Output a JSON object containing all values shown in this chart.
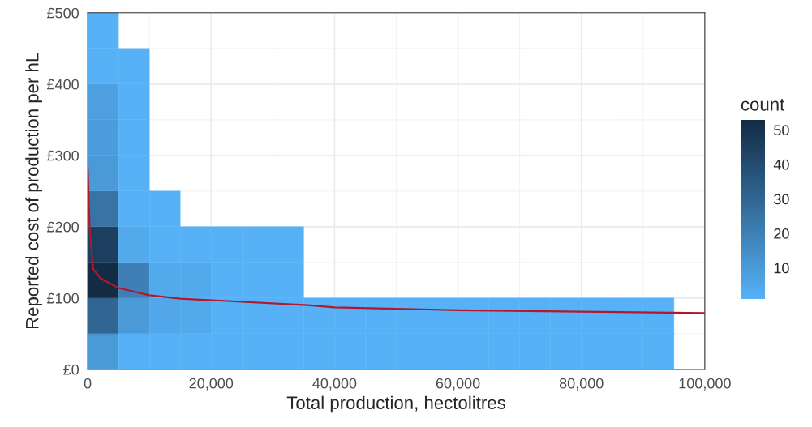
{
  "chart_data": {
    "type": "heatmap",
    "xlabel": "Total production, hectolitres",
    "ylabel": "Reported cost of production per hL",
    "legend_title": "count",
    "xlim": [
      0,
      100000
    ],
    "ylim": [
      0,
      500
    ],
    "xticks": [
      {
        "value": 0,
        "label": "0"
      },
      {
        "value": 20000,
        "label": "20,000"
      },
      {
        "value": 40000,
        "label": "40,000"
      },
      {
        "value": 60000,
        "label": "60,000"
      },
      {
        "value": 80000,
        "label": "80,000"
      },
      {
        "value": 100000,
        "label": "100,000"
      }
    ],
    "yticks": [
      {
        "value": 0,
        "label": "£0"
      },
      {
        "value": 100,
        "label": "£100"
      },
      {
        "value": 200,
        "label": "£200"
      },
      {
        "value": 300,
        "label": "£300"
      },
      {
        "value": 400,
        "label": "£400"
      },
      {
        "value": 500,
        "label": "£500"
      }
    ],
    "grid": true,
    "colors": [
      "#56b1f7",
      "#132b43"
    ],
    "clim": [
      1,
      53
    ],
    "cticks": [
      10,
      20,
      30,
      40,
      50
    ],
    "cells": [
      [
        1,
        null,
        null,
        null,
        null,
        null,
        null,
        null,
        null,
        null,
        null,
        null,
        null,
        null,
        null,
        null,
        null,
        null,
        null,
        null
      ],
      [
        1,
        1,
        null,
        null,
        null,
        null,
        null,
        null,
        null,
        null,
        null,
        null,
        null,
        null,
        null,
        null,
        null,
        null,
        null,
        null
      ],
      [
        8,
        1,
        null,
        null,
        null,
        null,
        null,
        null,
        null,
        null,
        null,
        null,
        null,
        null,
        null,
        null,
        null,
        null,
        null,
        null
      ],
      [
        9,
        1,
        null,
        null,
        null,
        null,
        null,
        null,
        null,
        null,
        null,
        null,
        null,
        null,
        null,
        null,
        null,
        null,
        null,
        null
      ],
      [
        10,
        1,
        null,
        null,
        null,
        null,
        null,
        null,
        null,
        null,
        null,
        null,
        null,
        null,
        null,
        null,
        null,
        null,
        null,
        null
      ],
      [
        25,
        1,
        1,
        null,
        null,
        null,
        null,
        null,
        null,
        null,
        null,
        null,
        null,
        null,
        null,
        null,
        null,
        null,
        null,
        null
      ],
      [
        45,
        4,
        1,
        1,
        1,
        1,
        1,
        null,
        null,
        null,
        null,
        null,
        null,
        null,
        null,
        null,
        null,
        null,
        null,
        null
      ],
      [
        53,
        20,
        4,
        4,
        1,
        1,
        1,
        null,
        null,
        null,
        null,
        null,
        null,
        null,
        null,
        null,
        null,
        null,
        null,
        null
      ],
      [
        30,
        10,
        5,
        4,
        1,
        1,
        1,
        1,
        1,
        1,
        1,
        1,
        1,
        1,
        1,
        1,
        1,
        1,
        1,
        null
      ],
      [
        10,
        1,
        1,
        1,
        1,
        1,
        1,
        1,
        1,
        1,
        1,
        1,
        1,
        1,
        1,
        1,
        1,
        1,
        1,
        null
      ]
    ],
    "series": [
      {
        "type": "line",
        "color": "#b2182b",
        "x": [
          0,
          300,
          880,
          2000,
          5000,
          10000,
          15000,
          20000,
          35660,
          40000,
          60000,
          80000,
          100000
        ],
        "values": [
          284,
          200,
          141,
          128,
          114,
          104,
          99,
          97,
          90,
          87,
          83,
          81,
          79
        ]
      }
    ]
  }
}
